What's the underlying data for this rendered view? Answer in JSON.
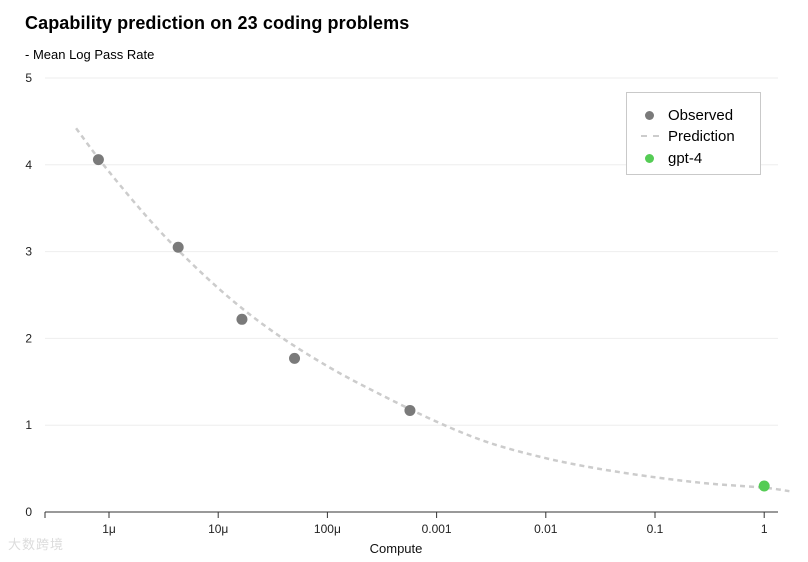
{
  "title": "Capability prediction on 23 coding problems",
  "subtitle": "- Mean Log Pass Rate",
  "watermark": "大数跨境",
  "colors": {
    "observed": "#7a7a7a",
    "prediction": "#cccccc",
    "gpt4": "#55cc55",
    "grid": "#eeeeee",
    "axis": "#333333"
  },
  "legend": {
    "placement": "top-right",
    "items": [
      {
        "label": "Observed",
        "marker": "dot",
        "color": "#7a7a7a"
      },
      {
        "label": "Prediction",
        "marker": "dash",
        "color": "#cccccc"
      },
      {
        "label": "gpt-4",
        "marker": "dot",
        "color": "#55cc55"
      }
    ]
  },
  "chart_data": {
    "type": "scatter",
    "title": "Capability prediction on 23 coding problems",
    "subtitle": "- Mean Log Pass Rate",
    "xlabel": "Compute",
    "ylabel": "",
    "xscale": "log",
    "xlim": [
      3e-07,
      2
    ],
    "ylim": [
      0,
      5
    ],
    "grid": "horizontal",
    "legend": "top-right",
    "x_ticks": [
      {
        "value": 1e-06,
        "label": "1μ"
      },
      {
        "value": 1e-05,
        "label": "10μ"
      },
      {
        "value": 0.0001,
        "label": "100μ"
      },
      {
        "value": 0.001,
        "label": "0.001"
      },
      {
        "value": 0.01,
        "label": "0.01"
      },
      {
        "value": 0.1,
        "label": "0.1"
      },
      {
        "value": 1,
        "label": "1"
      }
    ],
    "y_ticks": [
      {
        "value": 0,
        "label": "0"
      },
      {
        "value": 1,
        "label": "1"
      },
      {
        "value": 2,
        "label": "2"
      },
      {
        "value": 3,
        "label": "3"
      },
      {
        "value": 4,
        "label": "4"
      },
      {
        "value": 5,
        "label": "5"
      }
    ],
    "series": [
      {
        "name": "Observed",
        "kind": "scatter",
        "x": [
          8e-07,
          4.3e-06,
          1.65e-05,
          5e-05,
          0.00057
        ],
        "y": [
          4.06,
          3.05,
          2.22,
          1.77,
          1.17
        ]
      },
      {
        "name": "Prediction",
        "kind": "line",
        "style": "dashed",
        "x": [
          5e-07,
          1e-06,
          3e-06,
          1e-05,
          3e-05,
          0.0001,
          0.0003,
          0.001,
          0.003,
          0.01,
          0.03,
          0.1,
          0.3,
          1,
          1.7
        ],
        "y": [
          4.42,
          3.92,
          3.22,
          2.58,
          2.1,
          1.68,
          1.36,
          1.04,
          0.8,
          0.62,
          0.5,
          0.4,
          0.33,
          0.28,
          0.24
        ]
      },
      {
        "name": "gpt-4",
        "kind": "scatter",
        "x": [
          1
        ],
        "y": [
          0.3
        ]
      }
    ]
  }
}
